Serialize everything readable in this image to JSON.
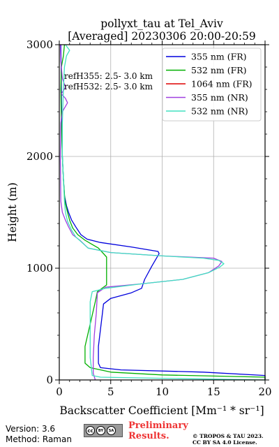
{
  "chart_data": {
    "type": "line",
    "title_line1": "pollyxt_tau at Tel_Aviv",
    "title_line2": "[Averaged] 20230306 20:00-20:59",
    "xlabel": "Backscatter Coefficient [Mm⁻¹ * sr⁻¹]",
    "ylabel": "Height (m)",
    "xlim": [
      0,
      20
    ],
    "ylim": [
      0,
      3000
    ],
    "xticks": [
      0,
      5,
      10,
      15,
      20
    ],
    "yticks": [
      0,
      1000,
      2000,
      3000
    ],
    "grid": true,
    "legend_position": "top-right",
    "annotations": [
      "refH355:  2.5- 3.0 km",
      "refH532:  2.5- 3.0 km"
    ],
    "series": [
      {
        "name": "355 nm (FR)",
        "color": "#0000dd",
        "points": [
          [
            20,
            0
          ],
          [
            20,
            40
          ],
          [
            14,
            70
          ],
          [
            6,
            90
          ],
          [
            4,
            110
          ],
          [
            3.8,
            150
          ],
          [
            3.8,
            300
          ],
          [
            4,
            450
          ],
          [
            4.2,
            600
          ],
          [
            4.3,
            680
          ],
          [
            5,
            730
          ],
          [
            7,
            780
          ],
          [
            8,
            820
          ],
          [
            8.3,
            900
          ],
          [
            9,
            1020
          ],
          [
            9.7,
            1130
          ],
          [
            9.6,
            1150
          ],
          [
            7,
            1190
          ],
          [
            4,
            1230
          ],
          [
            2.7,
            1260
          ],
          [
            2.1,
            1300
          ],
          [
            1.6,
            1370
          ],
          [
            1.2,
            1430
          ],
          [
            0.9,
            1500
          ],
          [
            0.7,
            1560
          ],
          [
            0.5,
            1650
          ],
          [
            0.4,
            1800
          ],
          [
            0.3,
            2000
          ],
          [
            0.25,
            2200
          ],
          [
            0.2,
            2500
          ],
          [
            0.18,
            2800
          ],
          [
            0.15,
            3000
          ]
        ]
      },
      {
        "name": "532 nm (FR)",
        "color": "#00b000",
        "points": [
          [
            20,
            0
          ],
          [
            20,
            25
          ],
          [
            10,
            45
          ],
          [
            5,
            70
          ],
          [
            3,
            110
          ],
          [
            2.5,
            150
          ],
          [
            2.5,
            300
          ],
          [
            3,
            500
          ],
          [
            3.5,
            700
          ],
          [
            3.7,
            790
          ],
          [
            4.6,
            850
          ],
          [
            4.6,
            1000
          ],
          [
            4.6,
            1100
          ],
          [
            3.8,
            1180
          ],
          [
            2.5,
            1250
          ],
          [
            1.8,
            1300
          ],
          [
            1.3,
            1360
          ],
          [
            1.0,
            1430
          ],
          [
            0.8,
            1500
          ],
          [
            0.55,
            1600
          ],
          [
            0.4,
            1800
          ],
          [
            0.3,
            2000
          ],
          [
            0.2,
            2300
          ],
          [
            0.15,
            2600
          ],
          [
            0.2,
            2800
          ],
          [
            0.4,
            2900
          ],
          [
            0.5,
            3000
          ]
        ]
      },
      {
        "name": "1064 nm (FR)",
        "color": "#dd0000",
        "points": []
      },
      {
        "name": "355 nm (NR)",
        "color": "#a040e0",
        "points": [
          [
            3.5,
            0
          ],
          [
            3.3,
            60
          ],
          [
            3.3,
            200
          ],
          [
            3.4,
            400
          ],
          [
            3.6,
            600
          ],
          [
            3.7,
            780
          ],
          [
            4.5,
            830
          ],
          [
            8,
            860
          ],
          [
            12,
            900
          ],
          [
            14.5,
            960
          ],
          [
            15.5,
            1020
          ],
          [
            15.8,
            1060
          ],
          [
            15,
            1090
          ],
          [
            10,
            1110
          ],
          [
            5,
            1140
          ],
          [
            2.8,
            1180
          ],
          [
            2,
            1250
          ],
          [
            1.3,
            1300
          ],
          [
            0.9,
            1370
          ],
          [
            0.6,
            1430
          ],
          [
            0.3,
            1500
          ],
          [
            0.15,
            1600
          ],
          [
            0.1,
            2000
          ],
          [
            0.15,
            2300
          ],
          [
            0.3,
            2400
          ],
          [
            0.8,
            2480
          ],
          [
            0.6,
            2520
          ],
          [
            0.2,
            2560
          ],
          [
            0.6,
            2620
          ],
          [
            0.3,
            2700
          ],
          [
            0.15,
            2850
          ],
          [
            0.1,
            3000
          ]
        ]
      },
      {
        "name": "532 nm (NR)",
        "color": "#40e0c0",
        "points": [
          [
            20,
            0
          ],
          [
            10,
            15
          ],
          [
            4,
            25
          ],
          [
            3.2,
            40
          ],
          [
            3,
            200
          ],
          [
            3,
            500
          ],
          [
            3,
            700
          ],
          [
            3.2,
            790
          ],
          [
            4.5,
            820
          ],
          [
            8,
            860
          ],
          [
            12,
            900
          ],
          [
            14.5,
            960
          ],
          [
            15.6,
            1010
          ],
          [
            16,
            1040
          ],
          [
            15.5,
            1070
          ],
          [
            14,
            1090
          ],
          [
            10,
            1110
          ],
          [
            5,
            1140
          ],
          [
            2.8,
            1180
          ],
          [
            2.2,
            1230
          ],
          [
            1.6,
            1280
          ],
          [
            1.2,
            1340
          ],
          [
            0.8,
            1420
          ],
          [
            0.6,
            1500
          ],
          [
            0.5,
            1600
          ],
          [
            0.4,
            1800
          ],
          [
            0.3,
            2000
          ],
          [
            0.3,
            2300
          ],
          [
            0.4,
            2600
          ],
          [
            0.5,
            2800
          ],
          [
            0.7,
            2900
          ],
          [
            1.0,
            2950
          ],
          [
            0.6,
            3000
          ]
        ]
      }
    ]
  },
  "footer": {
    "version": "Version: 3.6",
    "method": "Method: Raman",
    "preliminary_line1": "Preliminary",
    "preliminary_line2": "Results.",
    "license_line1": "© TROPOS & TAU 2023.",
    "license_line2": "CC BY SA 4.0 License.",
    "badge": {
      "cc": "cc",
      "by": "BY",
      "sa": "SA"
    }
  }
}
